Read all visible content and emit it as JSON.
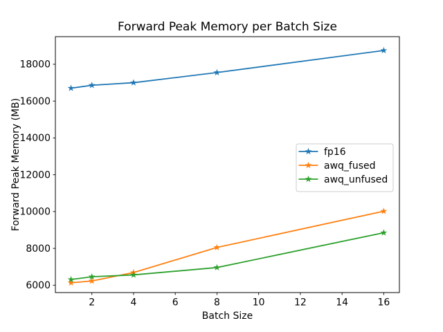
{
  "chart_data": {
    "type": "line",
    "title": "Forward Peak Memory per Batch Size",
    "xlabel": "Batch Size",
    "ylabel": "Forward Peak Memory (MB)",
    "x": [
      1,
      2,
      4,
      8,
      16
    ],
    "series": [
      {
        "name": "fp16",
        "color": "#1f77b4",
        "values": [
          16700,
          16860,
          17000,
          17550,
          18750
        ]
      },
      {
        "name": "awq_fused",
        "color": "#ff7f0e",
        "values": [
          6130,
          6230,
          6690,
          8050,
          10020
        ]
      },
      {
        "name": "awq_unfused",
        "color": "#2ca02c",
        "values": [
          6310,
          6460,
          6560,
          6960,
          8850
        ]
      }
    ],
    "marker": "star",
    "line_width": 1.8,
    "xticks": [
      2,
      4,
      6,
      8,
      10,
      12,
      14,
      16
    ],
    "yticks": [
      6000,
      8000,
      10000,
      12000,
      14000,
      16000,
      18000
    ],
    "xlim": [
      0.25,
      16.75
    ],
    "ylim": [
      5600,
      19500
    ],
    "grid": false,
    "legend": {
      "position": "center-right",
      "frame_color": "#cccccc",
      "entries": [
        "fp16",
        "awq_fused",
        "awq_unfused"
      ]
    },
    "colors": {
      "axes": "#000000",
      "background": "#ffffff"
    }
  }
}
